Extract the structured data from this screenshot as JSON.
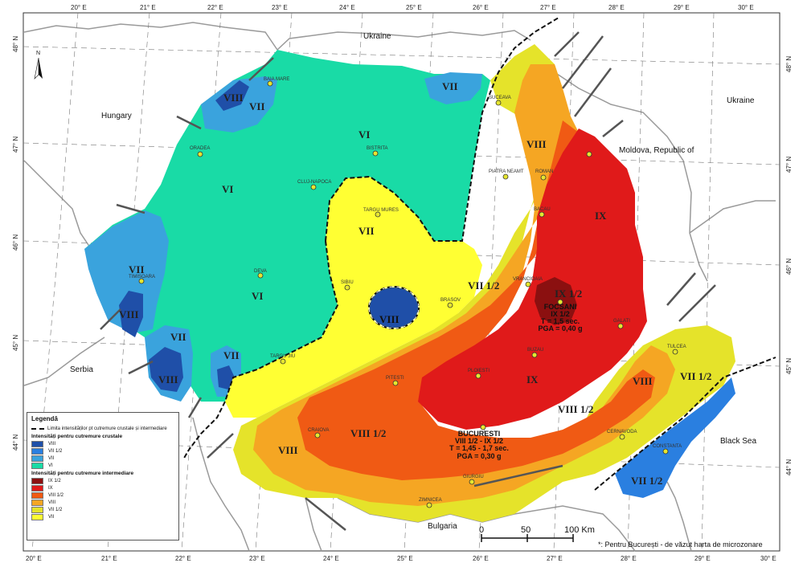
{
  "graticule": {
    "top": [
      "20° E",
      "21° E",
      "22° E",
      "23° E",
      "24° E",
      "25° E",
      "26° E",
      "27° E",
      "28° E",
      "29° E",
      "30° E"
    ],
    "bottom": [
      "20° E",
      "21° E",
      "22° E",
      "23° E",
      "24° E",
      "25° E",
      "26° E",
      "27° E",
      "28° E",
      "29° E",
      "30° E"
    ],
    "left": [
      "48° N",
      "47° N",
      "46° N",
      "45° N",
      "44° N"
    ],
    "right": [
      "48° N",
      "47° N",
      "46° N",
      "45° N",
      "44° N"
    ]
  },
  "countries": {
    "ukraine_north": "Ukraine",
    "ukraine_east": "Ukraine",
    "hungary": "Hungary",
    "moldova": "Moldova, Republic of",
    "serbia": "Serbia",
    "bulgaria": "Bulgaria",
    "black_sea": "Black Sea"
  },
  "zones": {
    "z_viii_nw": "VIII",
    "z_vii_nw": "VII",
    "z_vii_n": "VII",
    "z_vi_n": "VI",
    "z_vi_w": "VI",
    "z_vi_c": "VI",
    "z_vii_c": "VII",
    "z_viii_c": "VIII",
    "z_vii_w": "VII",
    "z_viii_w": "VIII",
    "z_vii_sw": "VII",
    "z_viii_sw": "VIII",
    "z_vii_sw2": "VII",
    "z_viii_ne": "VIII",
    "z_ix_e": "IX",
    "z_ix12": "IX 1/2",
    "z_vii12_c": "VII 1/2",
    "z_ix_s": "IX",
    "z_viii12_se": "VIII 1/2",
    "z_viii_se": "VIII",
    "z_vii12_se": "VII 1/2",
    "z_viii12_s": "VIII 1/2",
    "z_viii_s": "VIII",
    "z_vii12_sea": "VII 1/2"
  },
  "focsani": {
    "name": "FOCSANI",
    "line1": "IX 1/2",
    "line2": "T = 1,5 sec.",
    "line3": "PGA = 0,40 g"
  },
  "bucuresti": {
    "name": "BUCURESTI",
    "line1": "VIII 1/2 - IX 1/2",
    "line2": "T = 1,45 - 1,7 sec.",
    "line3": "PGA = 0,30 g"
  },
  "cities": [
    {
      "key": "satu_mare",
      "label": "BAIA MARE"
    },
    {
      "key": "oradea",
      "label": "ORADEA"
    },
    {
      "key": "suceava",
      "label": "SUCEAVA"
    },
    {
      "key": "bistrita",
      "label": "BISTRITA"
    },
    {
      "key": "cluj",
      "label": "CLUJ-NAPOCA"
    },
    {
      "key": "piatra",
      "label": "PIATRA NEAMT"
    },
    {
      "key": "roman",
      "label": "ROMAN"
    },
    {
      "key": "targu_mures",
      "label": "TARGU MURES"
    },
    {
      "key": "bacau",
      "label": "BACAU"
    },
    {
      "key": "timisoara",
      "label": "TIMISOARA"
    },
    {
      "key": "deva",
      "label": "DEVA"
    },
    {
      "key": "sibiu",
      "label": "SIBIU"
    },
    {
      "key": "vrancioaia",
      "label": "VRANCIOAIA"
    },
    {
      "key": "brasov",
      "label": "BRASOV"
    },
    {
      "key": "galati",
      "label": "GALATI"
    },
    {
      "key": "targu_jiu",
      "label": "TARGU JIU"
    },
    {
      "key": "buzau",
      "label": "BUZAU"
    },
    {
      "key": "tulcea",
      "label": "TULCEA"
    },
    {
      "key": "pitesti",
      "label": "PITESTI"
    },
    {
      "key": "ploiesti",
      "label": "PLOIESTI"
    },
    {
      "key": "craiova",
      "label": "CRAIOVA"
    },
    {
      "key": "cernavoda",
      "label": "CERNAVODA"
    },
    {
      "key": "constanta",
      "label": "CONSTANTA"
    },
    {
      "key": "giurgiu",
      "label": "GIURGIU"
    },
    {
      "key": "zimnicea",
      "label": "ZIMNICEA"
    },
    {
      "key": "iasi",
      "label": ""
    }
  ],
  "scale": {
    "s0": "0",
    "s50": "50",
    "s100": "100 Km"
  },
  "north": "N",
  "footnote": "*: Pentru București - de văzut harta de microzonare",
  "legend": {
    "title": "Legendă",
    "boundary": "Limita intensităților pt cutremure crustale și intermediare",
    "crustal_title": "Intensități pentru cutremure crustale",
    "crustal": [
      {
        "label": "VIII",
        "color": "#1f4fa8"
      },
      {
        "label": "VII 1/2",
        "color": "#2a7fe0"
      },
      {
        "label": "VII",
        "color": "#3aa3dd"
      },
      {
        "label": "VI",
        "color": "#19dba6"
      }
    ],
    "intermediate_title": "Intensități pentru cutremure intermediare",
    "intermediate": [
      {
        "label": "IX 1/2",
        "color": "#8b1010"
      },
      {
        "label": "IX",
        "color": "#e01a1a"
      },
      {
        "label": "VIII 1/2",
        "color": "#f05a14"
      },
      {
        "label": "VIII",
        "color": "#f5a623"
      },
      {
        "label": "VII 1/2",
        "color": "#e5e32a"
      },
      {
        "label": "VII",
        "color": "#ffff33"
      }
    ]
  }
}
